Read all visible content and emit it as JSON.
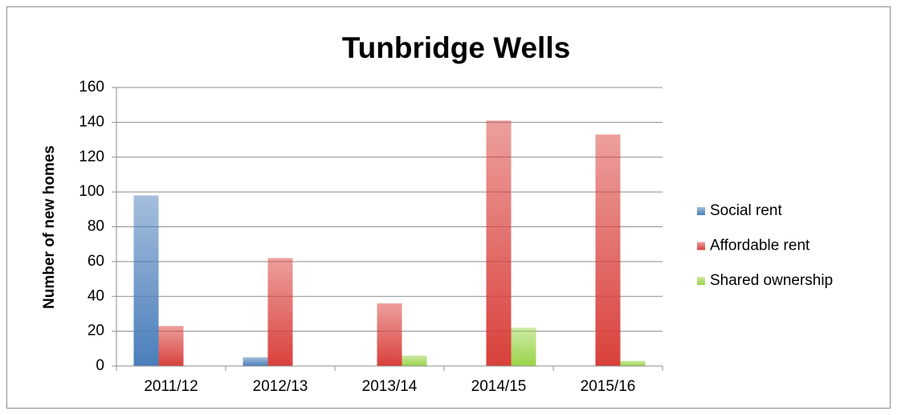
{
  "chart_data": {
    "type": "bar",
    "title": "Tunbridge Wells",
    "y_label": "Number of new homes",
    "categories": [
      "2011/12",
      "2012/13",
      "2013/14",
      "2014/15",
      "2015/16"
    ],
    "series": [
      {
        "name": "Social rent",
        "color": "#4a7ebb",
        "values": [
          98,
          5,
          0,
          0,
          0
        ]
      },
      {
        "name": "Affordable rent",
        "color": "#d9403b",
        "values": [
          23,
          62,
          36,
          141,
          133
        ]
      },
      {
        "name": "Shared ownership",
        "color": "#9bd44a",
        "values": [
          0,
          0,
          6,
          22,
          3
        ]
      }
    ],
    "ylim": [
      0,
      160
    ],
    "yticks": [
      0,
      20,
      40,
      60,
      80,
      100,
      120,
      140,
      160
    ],
    "grid": true,
    "legend": "right"
  }
}
